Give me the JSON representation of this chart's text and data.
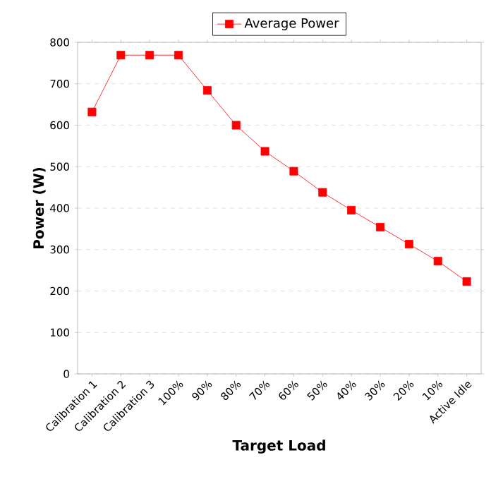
{
  "chart_data": {
    "type": "line",
    "xlabel": "Target Load",
    "ylabel": "Power (W)",
    "categories": [
      "Calibration 1",
      "Calibration 2",
      "Calibration 3",
      "100%",
      "90%",
      "80%",
      "70%",
      "60%",
      "50%",
      "40%",
      "30%",
      "20%",
      "10%",
      "Active Idle"
    ],
    "series": [
      {
        "name": "Average Power",
        "color": "#ff0000",
        "values": [
          632,
          769,
          769,
          769,
          684,
          600,
          537,
          489,
          438,
          395,
          354,
          313,
          272,
          223
        ]
      }
    ],
    "ylim": [
      0,
      800
    ],
    "yticks": [
      0,
      100,
      200,
      300,
      400,
      500,
      600,
      700,
      800
    ],
    "grid": "y",
    "legend": "top",
    "marker": "square",
    "line_style": "solid"
  }
}
